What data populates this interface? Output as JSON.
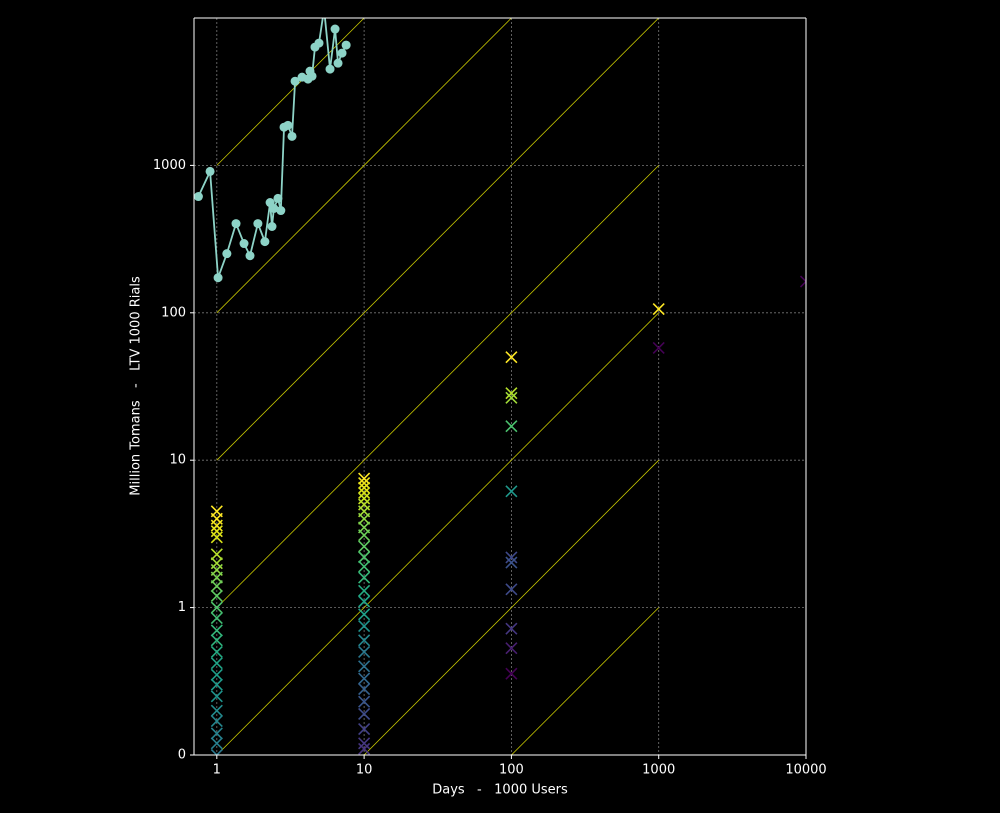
{
  "chart_data": {
    "type": "line",
    "xlabel": "Days   -   1000 Users",
    "ylabel": "Million Tomans   -   LTV 1000 Rials",
    "xscale": "log",
    "yscale": "log",
    "xlim": [
      0.7,
      10000
    ],
    "ylim": [
      0.1,
      10000
    ],
    "xticks": [
      1,
      10,
      100,
      1000,
      10000
    ],
    "yticks": [
      {
        "value": 0.1,
        "label": "0"
      },
      1,
      10,
      100,
      1000
    ],
    "grid": true,
    "series": [
      {
        "color": "#8dd3c7",
        "x": [
          0.75,
          0.9,
          1.02,
          1.17,
          1.35,
          1.53,
          1.68,
          1.9,
          2.12,
          2.3,
          2.37,
          2.44,
          2.6,
          2.72,
          2.86,
          3.04,
          3.24,
          3.4,
          3.79,
          4.16,
          4.29,
          4.43,
          4.64,
          4.94,
          5.35,
          5.87,
          6.35,
          6.65,
          7.08,
          7.55
        ],
        "values": [
          615,
          910,
          173,
          252,
          403,
          295,
          244,
          403,
          304,
          560,
          385,
          510,
          597,
          494,
          1815,
          1870,
          1575,
          3725,
          3970,
          3850,
          4360,
          4030,
          6350,
          6760,
          11500,
          4500,
          8420,
          4940,
          5780,
          6550
        ]
      }
    ],
    "scatter": {
      "x": [
        1,
        1,
        1,
        1,
        1,
        1,
        1,
        1,
        1,
        1,
        1,
        1,
        1,
        1,
        1,
        1,
        1,
        1,
        1,
        1,
        1,
        1,
        1,
        1,
        1,
        10,
        10,
        10,
        10,
        10,
        10,
        10,
        10,
        10,
        10,
        10,
        10,
        10,
        10,
        10,
        10,
        10,
        10,
        10,
        10,
        10,
        10,
        10,
        10,
        10,
        10,
        10,
        10,
        100,
        100,
        100,
        100,
        100,
        100,
        100,
        100,
        100,
        100,
        100,
        1000,
        1000,
        10000
      ],
      "values": [
        4.5,
        4.0,
        3.6,
        3.3,
        3.0,
        2.3,
        2.0,
        1.8,
        1.6,
        1.4,
        1.2,
        1.0,
        0.85,
        0.7,
        0.6,
        0.5,
        0.42,
        0.35,
        0.3,
        0.25,
        0.2,
        0.17,
        0.14,
        0.12,
        0.1,
        7.5,
        7.0,
        6.5,
        6.0,
        5.5,
        5.0,
        4.5,
        4.0,
        3.5,
        3.1,
        2.6,
        2.2,
        1.9,
        1.6,
        1.3,
        1.1,
        0.9,
        0.75,
        0.6,
        0.5,
        0.4,
        0.33,
        0.28,
        0.23,
        0.19,
        0.15,
        0.12,
        0.11,
        50,
        28.5,
        26.5,
        17,
        6.15,
        2.19,
        2.02,
        1.33,
        0.72,
        0.53,
        0.356,
        106,
        57.8,
        163
      ],
      "colors": [
        "#fde725",
        "#fde725",
        "#f1e51d",
        "#e5e419",
        "#d8e219",
        "#b5de2b",
        "#a5db36",
        "#8fd744",
        "#7ad151",
        "#6ccd5a",
        "#5ec962",
        "#4ec36b",
        "#40bd72",
        "#35b779",
        "#2fb47c",
        "#25ab82",
        "#20a386",
        "#1f9e89",
        "#1f998a",
        "#1f928c",
        "#228c8d",
        "#24868e",
        "#26828e",
        "#277f8e",
        "#2a788e",
        "#fde725",
        "#f1e51d",
        "#e5e419",
        "#d8e219",
        "#c8e020",
        "#b5de2b",
        "#a5db36",
        "#8fd744",
        "#7ad151",
        "#6ccd5a",
        "#5ec962",
        "#4ec36b",
        "#40bd72",
        "#35b779",
        "#25ab82",
        "#20a386",
        "#1f9e89",
        "#1f928c",
        "#24868e",
        "#2a788e",
        "#2d708e",
        "#31688e",
        "#35608d",
        "#39568c",
        "#3e4c8a",
        "#424186",
        "#453781",
        "#46337e",
        "#fde725",
        "#b5de2b",
        "#a0da39",
        "#4ac16d",
        "#1f988b",
        "#3e4989",
        "#3b528b",
        "#3e4a89",
        "#453781",
        "#481f70",
        "#440154",
        "#fde725",
        "#440154",
        "#440154"
      ]
    },
    "reference_lines": {
      "color": "#c8c800",
      "lines": [
        {
          "x": [
            1,
            10
          ],
          "values": [
            1000,
            10000
          ]
        },
        {
          "x": [
            1,
            100
          ],
          "values": [
            100,
            10000
          ]
        },
        {
          "x": [
            1,
            1000
          ],
          "values": [
            10,
            10000
          ]
        },
        {
          "x": [
            1,
            1000
          ],
          "values": [
            1,
            1000
          ]
        },
        {
          "x": [
            1,
            1000
          ],
          "values": [
            0.1,
            100
          ]
        },
        {
          "x": [
            10,
            1000
          ],
          "values": [
            0.1,
            10
          ]
        },
        {
          "x": [
            100,
            1000
          ],
          "values": [
            0.1,
            1
          ]
        }
      ]
    }
  }
}
